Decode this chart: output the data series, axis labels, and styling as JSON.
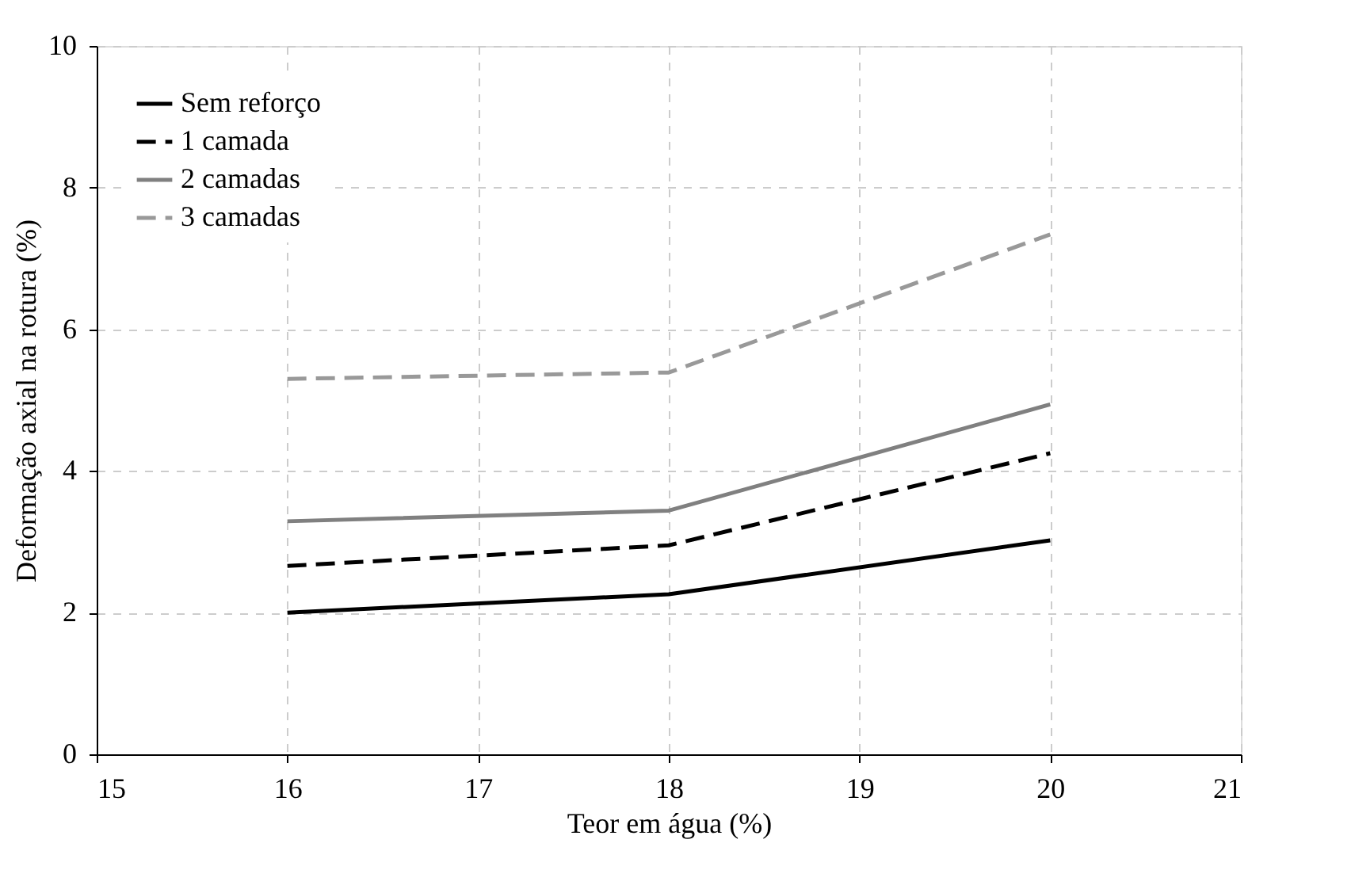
{
  "chart_data": {
    "type": "line",
    "xlabel": "Teor em água (%)",
    "ylabel": "Deformação axial na rotura (%)",
    "x": [
      16,
      18,
      20
    ],
    "series": [
      {
        "name": "Sem reforço",
        "color": "#000000",
        "line_style": "solid",
        "values": [
          2.0,
          2.26,
          3.02
        ]
      },
      {
        "name": "1 camada",
        "color": "#000000",
        "line_style": "dashed",
        "values": [
          2.66,
          2.95,
          4.25
        ]
      },
      {
        "name": "2 camadas",
        "color": "#808080",
        "line_style": "solid",
        "values": [
          3.29,
          3.44,
          4.94
        ]
      },
      {
        "name": "3 camadas",
        "color": "#999999",
        "line_style": "dashed",
        "values": [
          5.3,
          5.39,
          7.34
        ]
      }
    ],
    "xlim": [
      15,
      21
    ],
    "xticks": [
      15,
      16,
      17,
      18,
      19,
      20,
      21
    ],
    "ylim": [
      0,
      10
    ],
    "yticks": [
      0,
      2,
      4,
      6,
      8,
      10
    ],
    "grid": true,
    "legend": "top left",
    "marker": "none"
  }
}
